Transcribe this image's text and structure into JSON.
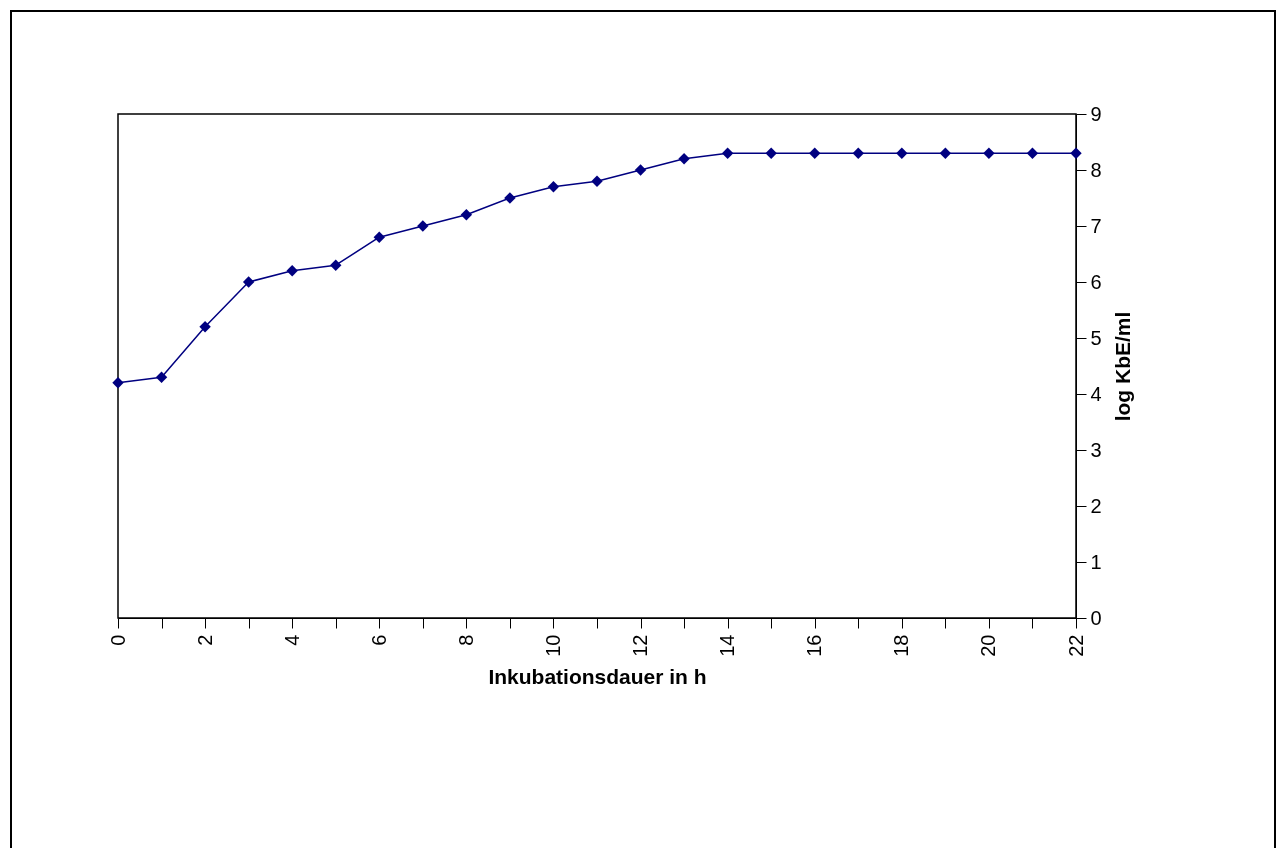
{
  "chart_data": {
    "type": "line",
    "xlabel": "Inkubationsdauer in h",
    "ylabel": "log KbE/ml",
    "x": [
      0,
      1,
      2,
      3,
      4,
      5,
      6,
      7,
      8,
      9,
      10,
      11,
      12,
      13,
      14,
      15,
      16,
      17,
      18,
      19,
      20,
      21,
      22
    ],
    "series": [
      {
        "color": "#000080",
        "values": [
          4.2,
          4.3,
          5.2,
          6.0,
          6.2,
          6.3,
          6.8,
          7.0,
          7.2,
          7.5,
          7.7,
          7.8,
          8.0,
          8.2,
          8.3,
          8.3,
          8.3,
          8.3,
          8.3,
          8.3,
          8.3,
          8.3,
          8.3
        ]
      }
    ],
    "xlim": [
      0,
      22
    ],
    "xticks": [
      0,
      {
        "value": 1,
        "label": null
      },
      2,
      {
        "value": 3,
        "label": null
      },
      4,
      {
        "value": 5,
        "label": null
      },
      6,
      {
        "value": 7,
        "label": null
      },
      8,
      {
        "value": 9,
        "label": null
      },
      10,
      {
        "value": 11,
        "label": null
      },
      12,
      {
        "value": 13,
        "label": null
      },
      14,
      {
        "value": 15,
        "label": null
      },
      16,
      {
        "value": 17,
        "label": null
      },
      18,
      {
        "value": 19,
        "label": null
      },
      20,
      {
        "value": 21,
        "label": null
      },
      22
    ],
    "ylim": [
      0,
      9
    ],
    "yticks": [
      0,
      1,
      2,
      3,
      4,
      5,
      6,
      7,
      8,
      9
    ],
    "grid": false,
    "marker": "diamond",
    "line_style": "solid"
  }
}
